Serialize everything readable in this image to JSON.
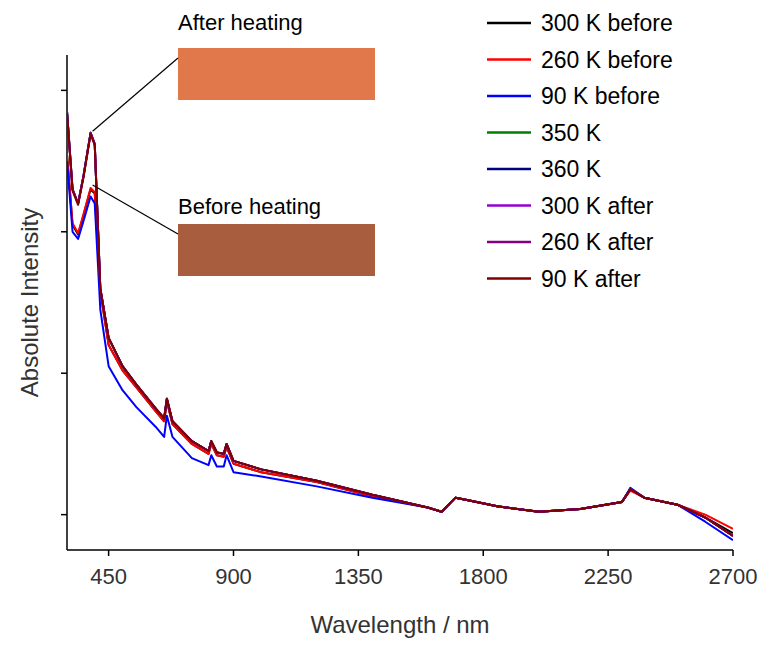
{
  "chart_data": {
    "type": "line",
    "x_label": "Wavelength / nm",
    "y_label": "Absolute Intensity",
    "annotations": [
      "After heating",
      "Before heating"
    ],
    "x": [
      300,
      320,
      340,
      360,
      385,
      400,
      420,
      450,
      500,
      550,
      620,
      650,
      660,
      680,
      750,
      810,
      820,
      840,
      865,
      875,
      900,
      1000,
      1200,
      1400,
      1600,
      1650,
      1700,
      1750,
      1850,
      2000,
      2150,
      2300,
      2330,
      2380,
      2500,
      2600,
      2700
    ],
    "series": [
      {
        "name": "300 K before",
        "color": "#000000",
        "values": [
          2.55,
          2.05,
          1.98,
          2.12,
          2.3,
          2.27,
          1.58,
          1.2,
          1.02,
          0.9,
          0.73,
          0.66,
          0.8,
          0.64,
          0.5,
          0.43,
          0.5,
          0.42,
          0.41,
          0.48,
          0.36,
          0.3,
          0.23,
          0.13,
          0.05,
          0.02,
          0.12,
          0.1,
          0.06,
          0.02,
          0.04,
          0.09,
          0.18,
          0.12,
          0.07,
          -0.02,
          -0.13
        ]
      },
      {
        "name": "260 K before",
        "color": "#ff0000",
        "values": [
          2.55,
          2.06,
          1.99,
          2.13,
          2.31,
          2.28,
          1.58,
          1.2,
          1.02,
          0.9,
          0.73,
          0.66,
          0.8,
          0.64,
          0.5,
          0.43,
          0.5,
          0.42,
          0.41,
          0.48,
          0.36,
          0.3,
          0.23,
          0.13,
          0.05,
          0.02,
          0.12,
          0.1,
          0.06,
          0.02,
          0.04,
          0.09,
          0.17,
          0.12,
          0.07,
          0.0,
          -0.1
        ]
      },
      {
        "name": "90 K before",
        "color": "#0000ff",
        "values": [
          2.5,
          2.0,
          1.95,
          2.08,
          2.25,
          2.2,
          1.45,
          1.05,
          0.88,
          0.76,
          0.62,
          0.55,
          0.7,
          0.55,
          0.4,
          0.35,
          0.42,
          0.34,
          0.34,
          0.42,
          0.3,
          0.27,
          0.2,
          0.12,
          0.05,
          0.02,
          0.12,
          0.1,
          0.06,
          0.02,
          0.04,
          0.09,
          0.19,
          0.12,
          0.07,
          -0.05,
          -0.18
        ]
      },
      {
        "name": "350 K",
        "color": "#008000",
        "values": [
          2.85,
          2.3,
          2.2,
          2.4,
          2.7,
          2.62,
          1.6,
          1.25,
          1.05,
          0.92,
          0.75,
          0.68,
          0.82,
          0.66,
          0.52,
          0.45,
          0.52,
          0.44,
          0.43,
          0.5,
          0.38,
          0.32,
          0.24,
          0.14,
          0.05,
          0.02,
          0.12,
          0.1,
          0.06,
          0.02,
          0.04,
          0.09,
          0.18,
          0.12,
          0.07,
          -0.02,
          -0.15
        ]
      },
      {
        "name": "360 K",
        "color": "#000080",
        "values": [
          2.85,
          2.3,
          2.2,
          2.4,
          2.7,
          2.62,
          1.6,
          1.25,
          1.05,
          0.92,
          0.75,
          0.68,
          0.82,
          0.66,
          0.52,
          0.45,
          0.52,
          0.44,
          0.43,
          0.5,
          0.38,
          0.32,
          0.24,
          0.14,
          0.05,
          0.02,
          0.12,
          0.1,
          0.06,
          0.02,
          0.04,
          0.09,
          0.18,
          0.12,
          0.07,
          -0.02,
          -0.15
        ]
      },
      {
        "name": "300 K after",
        "color": "#9400d3",
        "values": [
          2.85,
          2.3,
          2.2,
          2.4,
          2.7,
          2.62,
          1.6,
          1.25,
          1.05,
          0.92,
          0.75,
          0.68,
          0.82,
          0.66,
          0.52,
          0.45,
          0.52,
          0.44,
          0.43,
          0.5,
          0.38,
          0.32,
          0.24,
          0.14,
          0.05,
          0.02,
          0.12,
          0.1,
          0.06,
          0.02,
          0.04,
          0.09,
          0.18,
          0.12,
          0.07,
          -0.02,
          -0.15
        ]
      },
      {
        "name": "260 K after",
        "color": "#800080",
        "values": [
          2.85,
          2.3,
          2.2,
          2.4,
          2.7,
          2.62,
          1.6,
          1.25,
          1.05,
          0.92,
          0.75,
          0.68,
          0.82,
          0.66,
          0.52,
          0.45,
          0.52,
          0.44,
          0.43,
          0.5,
          0.38,
          0.32,
          0.24,
          0.14,
          0.05,
          0.02,
          0.12,
          0.1,
          0.06,
          0.02,
          0.04,
          0.09,
          0.18,
          0.12,
          0.07,
          -0.02,
          -0.15
        ]
      },
      {
        "name": "90 K after",
        "color": "#800000",
        "values": [
          2.84,
          2.29,
          2.19,
          2.39,
          2.69,
          2.61,
          1.6,
          1.25,
          1.05,
          0.92,
          0.75,
          0.68,
          0.82,
          0.66,
          0.52,
          0.45,
          0.52,
          0.44,
          0.43,
          0.5,
          0.38,
          0.32,
          0.24,
          0.14,
          0.05,
          0.02,
          0.12,
          0.1,
          0.06,
          0.02,
          0.04,
          0.09,
          0.18,
          0.12,
          0.07,
          -0.02,
          -0.15
        ]
      }
    ],
    "xlim": [
      300,
      2700
    ],
    "xticks": [
      450,
      900,
      1350,
      1800,
      2250,
      2700
    ],
    "ylim": [
      -0.25,
      3.25
    ],
    "yticks": [
      0,
      1,
      2,
      3
    ],
    "tick_labels": "x",
    "legend": "upper right",
    "grid": false
  }
}
